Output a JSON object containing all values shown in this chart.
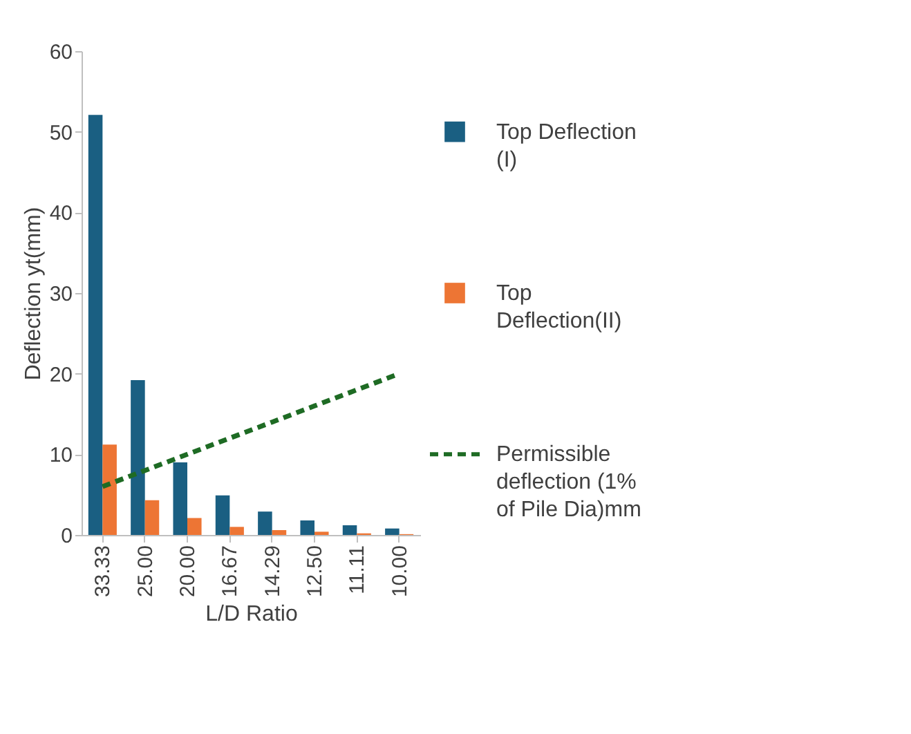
{
  "chart_data": {
    "type": "bar",
    "xlabel": "L/D Ratio",
    "ylabel": "Deflection yt(mm)",
    "categories": [
      "33.33",
      "25.00",
      "20.00",
      "16.67",
      "14.29",
      "12.50",
      "11.11",
      "10.00"
    ],
    "series": [
      {
        "name": "Top Deflection (I)",
        "color": "#1a5f82",
        "values": [
          52.1,
          19.2,
          9.0,
          4.9,
          2.9,
          1.8,
          1.2,
          0.8
        ]
      },
      {
        "name": "Top Deflection(II)",
        "color": "#ed7534",
        "values": [
          11.2,
          4.3,
          2.1,
          1.0,
          0.6,
          0.4,
          0.2,
          0.1
        ]
      },
      {
        "name": "Permissible deflection (1% of Pile Dia)mm",
        "color": "#1e6b24",
        "type": "line",
        "line_style": "dashed",
        "marker": "none",
        "values": [
          6,
          8,
          10,
          12,
          14,
          16,
          18,
          20
        ]
      }
    ],
    "ylim": [
      0,
      60
    ],
    "yticks": [
      0,
      10,
      20,
      30,
      40,
      50,
      60
    ],
    "grid": false,
    "legend": "right"
  }
}
